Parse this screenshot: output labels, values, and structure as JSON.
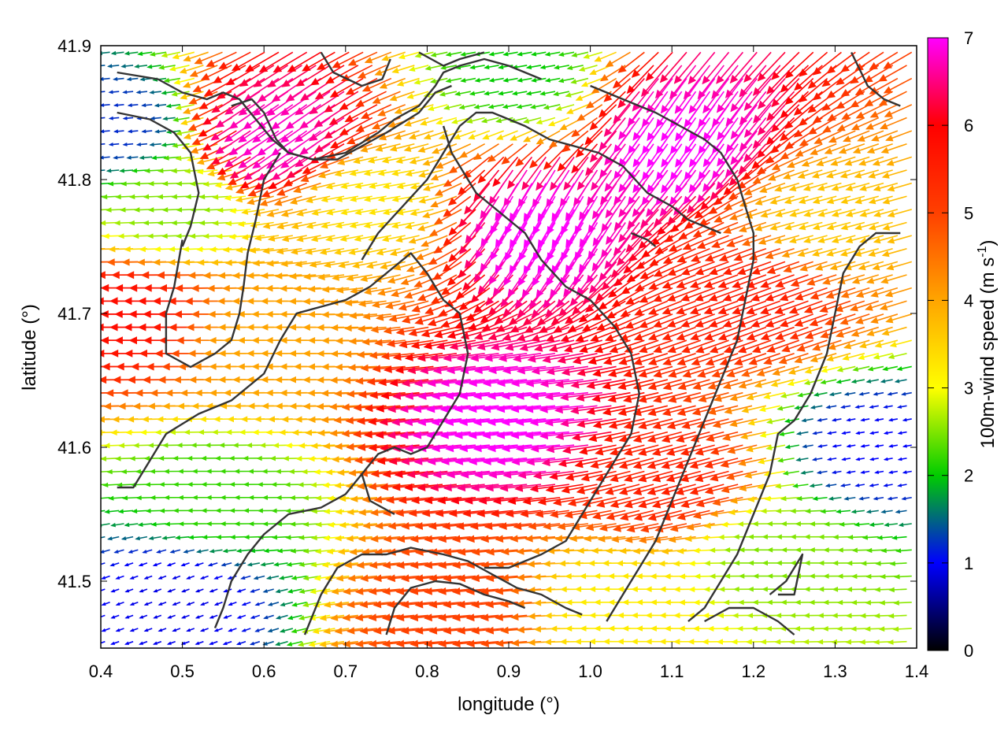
{
  "chart_data": {
    "type": "vector-field",
    "xlabel": "longitude (°)",
    "ylabel": "latitude (°)",
    "colorbar_label": {
      "main": "100m-wind speed (m s",
      "exponent": "-1",
      "close": ")"
    },
    "xlim": [
      0.4,
      1.4
    ],
    "ylim": [
      41.45,
      41.9
    ],
    "xticks": [
      0.4,
      0.5,
      0.6,
      0.7,
      0.8,
      0.9,
      1.0,
      1.1,
      1.2,
      1.3,
      1.4
    ],
    "xtick_labels": [
      "0.4",
      "0.5",
      "0.6",
      "0.7",
      "0.8",
      "0.9",
      "1.0",
      "1.1",
      "1.2",
      "1.3",
      "1.4"
    ],
    "yticks": [
      41.5,
      41.6,
      41.7,
      41.8,
      41.9
    ],
    "ytick_labels": [
      "41.5",
      "41.6",
      "41.7",
      "41.8",
      "41.9"
    ],
    "colorbar": {
      "min": 0,
      "max": 7,
      "ticks": [
        0,
        1,
        2,
        3,
        4,
        5,
        6,
        7
      ],
      "tick_labels": [
        "0",
        "1",
        "2",
        "3",
        "4",
        "5",
        "6",
        "7"
      ],
      "colormap": [
        "#000000",
        "#0000ff",
        "#00cc00",
        "#ffff00",
        "#ffa500",
        "#ff4000",
        "#ff0000",
        "#ff00ff"
      ]
    },
    "wind_regions": [
      {
        "name": "calm-southwest",
        "lon": 0.5,
        "lat": 41.49,
        "speed": 0.9,
        "dir_deg": 200
      },
      {
        "name": "calm-southeast",
        "lon": 1.35,
        "lat": 41.6,
        "speed": 1.0,
        "dir_deg": 190
      },
      {
        "name": "calm-northwest",
        "lon": 0.42,
        "lat": 41.84,
        "speed": 1.2,
        "dir_deg": 185
      },
      {
        "name": "calm-north",
        "lon": 0.92,
        "lat": 41.88,
        "speed": 2.0,
        "dir_deg": 190
      },
      {
        "name": "green-west-low",
        "lon": 0.55,
        "lat": 41.56,
        "speed": 2.2,
        "dir_deg": 180
      },
      {
        "name": "green-southeast",
        "lon": 1.24,
        "lat": 41.52,
        "speed": 2.5,
        "dir_deg": 180
      },
      {
        "name": "green-northwest",
        "lon": 0.5,
        "lat": 41.78,
        "speed": 2.5,
        "dir_deg": 182
      },
      {
        "name": "jet-core",
        "lon": 0.92,
        "lat": 41.62,
        "speed": 7.0,
        "dir_deg": 185
      },
      {
        "name": "jet-north",
        "lon": 0.95,
        "lat": 41.78,
        "speed": 7.0,
        "dir_deg": 240
      },
      {
        "name": "jet-northeast",
        "lon": 1.12,
        "lat": 41.84,
        "speed": 7.0,
        "dir_deg": 235
      },
      {
        "name": "north-pink",
        "lon": 0.64,
        "lat": 41.84,
        "speed": 6.8,
        "dir_deg": 215
      },
      {
        "name": "west-red-band",
        "lon": 0.46,
        "lat": 41.7,
        "speed": 5.8,
        "dir_deg": 180
      },
      {
        "name": "east-red",
        "lon": 1.22,
        "lat": 41.72,
        "speed": 5.6,
        "dir_deg": 200
      },
      {
        "name": "southeast-red",
        "lon": 1.12,
        "lat": 41.58,
        "speed": 5.5,
        "dir_deg": 195
      },
      {
        "name": "south-band",
        "lon": 0.86,
        "lat": 41.48,
        "speed": 5.0,
        "dir_deg": 185
      },
      {
        "name": "west-orange",
        "lon": 0.62,
        "lat": 41.68,
        "speed": 4.0,
        "dir_deg": 180
      },
      {
        "name": "east-orange",
        "lon": 1.3,
        "lat": 41.77,
        "speed": 3.6,
        "dir_deg": 195
      },
      {
        "name": "yellow-south",
        "lon": 1.05,
        "lat": 41.48,
        "speed": 3.2,
        "dir_deg": 180
      },
      {
        "name": "ridge-yellow",
        "lon": 0.75,
        "lat": 41.79,
        "speed": 3.3,
        "dir_deg": 190
      }
    ],
    "contours": [
      [
        [
          0.42,
          41.88
        ],
        [
          0.47,
          41.875
        ],
        [
          0.5,
          41.865
        ],
        [
          0.53,
          41.86
        ],
        [
          0.55,
          41.865
        ],
        [
          0.57,
          41.86
        ],
        [
          0.59,
          41.845
        ],
        [
          0.61,
          41.83
        ],
        [
          0.63,
          41.82
        ],
        [
          0.66,
          41.815
        ],
        [
          0.7,
          41.82
        ],
        [
          0.74,
          41.835
        ],
        [
          0.76,
          41.845
        ],
        [
          0.79,
          41.855
        ],
        [
          0.81,
          41.87
        ],
        [
          0.82,
          41.88
        ],
        [
          0.84,
          41.885
        ],
        [
          0.87,
          41.89
        ],
        [
          0.9,
          41.885
        ],
        [
          0.92,
          41.88
        ],
        [
          0.94,
          41.875
        ]
      ],
      [
        [
          0.56,
          41.855
        ],
        [
          0.585,
          41.86
        ],
        [
          0.6,
          41.85
        ],
        [
          0.615,
          41.83
        ],
        [
          0.63,
          41.82
        ],
        [
          0.66,
          41.815
        ],
        [
          0.69,
          41.815
        ],
        [
          0.72,
          41.825
        ],
        [
          0.75,
          41.835
        ],
        [
          0.79,
          41.85
        ],
        [
          0.81,
          41.865
        ],
        [
          0.83,
          41.87
        ]
      ],
      [
        [
          0.67,
          41.895
        ],
        [
          0.685,
          41.88
        ],
        [
          0.72,
          41.87
        ],
        [
          0.745,
          41.875
        ],
        [
          0.755,
          41.89
        ]
      ],
      [
        [
          0.79,
          41.895
        ],
        [
          0.82,
          41.885
        ],
        [
          0.84,
          41.89
        ],
        [
          0.87,
          41.895
        ]
      ],
      [
        [
          0.5,
          41.755
        ],
        [
          0.49,
          41.72
        ],
        [
          0.48,
          41.7
        ],
        [
          0.48,
          41.67
        ],
        [
          0.51,
          41.66
        ],
        [
          0.54,
          41.67
        ],
        [
          0.56,
          41.68
        ],
        [
          0.57,
          41.7
        ],
        [
          0.575,
          41.72
        ],
        [
          0.58,
          41.745
        ],
        [
          0.59,
          41.77
        ],
        [
          0.6,
          41.8
        ],
        [
          0.62,
          41.82
        ]
      ],
      [
        [
          0.42,
          41.85
        ],
        [
          0.46,
          41.845
        ],
        [
          0.49,
          41.835
        ],
        [
          0.51,
          41.82
        ],
        [
          0.52,
          41.79
        ],
        [
          0.51,
          41.765
        ],
        [
          0.5,
          41.75
        ]
      ],
      [
        [
          0.42,
          41.57
        ],
        [
          0.44,
          41.57
        ],
        [
          0.46,
          41.59
        ],
        [
          0.48,
          41.61
        ],
        [
          0.52,
          41.625
        ],
        [
          0.56,
          41.635
        ],
        [
          0.6,
          41.655
        ],
        [
          0.62,
          41.68
        ],
        [
          0.64,
          41.7
        ],
        [
          0.67,
          41.705
        ],
        [
          0.7,
          41.71
        ],
        [
          0.73,
          41.72
        ],
        [
          0.75,
          41.73
        ],
        [
          0.78,
          41.745
        ],
        [
          0.8,
          41.73
        ],
        [
          0.82,
          41.71
        ],
        [
          0.84,
          41.7
        ],
        [
          0.85,
          41.67
        ],
        [
          0.84,
          41.64
        ],
        [
          0.82,
          41.62
        ],
        [
          0.8,
          41.6
        ],
        [
          0.78,
          41.595
        ],
        [
          0.76,
          41.6
        ],
        [
          0.74,
          41.595
        ],
        [
          0.72,
          41.58
        ],
        [
          0.73,
          41.56
        ],
        [
          0.76,
          41.55
        ]
      ],
      [
        [
          0.72,
          41.58
        ],
        [
          0.7,
          41.565
        ],
        [
          0.67,
          41.555
        ],
        [
          0.63,
          41.55
        ],
        [
          0.6,
          41.535
        ],
        [
          0.58,
          41.52
        ],
        [
          0.56,
          41.5
        ],
        [
          0.55,
          41.48
        ],
        [
          0.54,
          41.465
        ]
      ],
      [
        [
          0.65,
          41.46
        ],
        [
          0.67,
          41.49
        ],
        [
          0.69,
          41.51
        ],
        [
          0.72,
          41.52
        ],
        [
          0.75,
          41.52
        ],
        [
          0.78,
          41.525
        ],
        [
          0.82,
          41.52
        ],
        [
          0.85,
          41.515
        ],
        [
          0.88,
          41.505
        ],
        [
          0.91,
          41.495
        ],
        [
          0.94,
          41.49
        ],
        [
          0.97,
          41.48
        ],
        [
          0.99,
          41.475
        ]
      ],
      [
        [
          0.75,
          41.46
        ],
        [
          0.76,
          41.48
        ],
        [
          0.78,
          41.495
        ],
        [
          0.81,
          41.5
        ],
        [
          0.84,
          41.498
        ],
        [
          0.87,
          41.49
        ],
        [
          0.9,
          41.485
        ],
        [
          0.92,
          41.48
        ]
      ],
      [
        [
          0.72,
          41.74
        ],
        [
          0.74,
          41.76
        ],
        [
          0.77,
          41.78
        ],
        [
          0.8,
          41.8
        ],
        [
          0.82,
          41.82
        ],
        [
          0.84,
          41.84
        ],
        [
          0.86,
          41.85
        ],
        [
          0.88,
          41.85
        ],
        [
          0.9,
          41.845
        ],
        [
          0.92,
          41.84
        ],
        [
          0.95,
          41.83
        ],
        [
          0.98,
          41.825
        ],
        [
          1.01,
          41.82
        ],
        [
          1.04,
          41.81
        ],
        [
          1.07,
          41.79
        ],
        [
          1.1,
          41.78
        ],
        [
          1.12,
          41.77
        ],
        [
          1.14,
          41.765
        ],
        [
          1.16,
          41.76
        ]
      ],
      [
        [
          0.82,
          41.84
        ],
        [
          0.83,
          41.82
        ],
        [
          0.85,
          41.8
        ],
        [
          0.86,
          41.79
        ],
        [
          0.88,
          41.78
        ],
        [
          0.9,
          41.77
        ],
        [
          0.92,
          41.76
        ],
        [
          0.94,
          41.74
        ],
        [
          0.97,
          41.72
        ],
        [
          1.0,
          41.71
        ],
        [
          1.03,
          41.69
        ],
        [
          1.05,
          41.67
        ],
        [
          1.06,
          41.64
        ],
        [
          1.05,
          41.61
        ],
        [
          1.03,
          41.59
        ],
        [
          1.01,
          41.57
        ],
        [
          0.99,
          41.55
        ],
        [
          0.97,
          41.53
        ],
        [
          0.94,
          41.52
        ],
        [
          0.9,
          41.51
        ],
        [
          0.87,
          41.51
        ]
      ],
      [
        [
          1.0,
          41.87
        ],
        [
          1.04,
          41.86
        ],
        [
          1.08,
          41.85
        ],
        [
          1.11,
          41.84
        ],
        [
          1.14,
          41.83
        ],
        [
          1.16,
          41.82
        ],
        [
          1.18,
          41.8
        ],
        [
          1.19,
          41.78
        ],
        [
          1.2,
          41.76
        ],
        [
          1.2,
          41.74
        ],
        [
          1.19,
          41.71
        ],
        [
          1.18,
          41.68
        ],
        [
          1.16,
          41.65
        ],
        [
          1.14,
          41.62
        ],
        [
          1.12,
          41.59
        ],
        [
          1.1,
          41.56
        ],
        [
          1.08,
          41.53
        ],
        [
          1.06,
          41.51
        ],
        [
          1.04,
          41.49
        ],
        [
          1.02,
          41.47
        ]
      ],
      [
        [
          1.38,
          41.76
        ],
        [
          1.35,
          41.76
        ],
        [
          1.33,
          41.75
        ],
        [
          1.31,
          41.73
        ],
        [
          1.3,
          41.7
        ],
        [
          1.29,
          41.67
        ],
        [
          1.27,
          41.64
        ],
        [
          1.25,
          41.62
        ],
        [
          1.23,
          41.61
        ],
        [
          1.22,
          41.58
        ],
        [
          1.2,
          41.55
        ],
        [
          1.18,
          41.52
        ],
        [
          1.16,
          41.5
        ],
        [
          1.14,
          41.48
        ],
        [
          1.12,
          41.47
        ]
      ],
      [
        [
          1.22,
          41.49
        ],
        [
          1.24,
          41.5
        ],
        [
          1.26,
          41.52
        ],
        [
          1.25,
          41.49
        ],
        [
          1.23,
          41.49
        ]
      ],
      [
        [
          1.14,
          41.47
        ],
        [
          1.17,
          41.48
        ],
        [
          1.2,
          41.48
        ],
        [
          1.23,
          41.47
        ],
        [
          1.25,
          41.46
        ]
      ],
      [
        [
          1.32,
          41.895
        ],
        [
          1.34,
          41.87
        ],
        [
          1.36,
          41.86
        ],
        [
          1.38,
          41.855
        ]
      ],
      [
        [
          1.05,
          41.76
        ],
        [
          1.07,
          41.755
        ],
        [
          1.08,
          41.75
        ]
      ]
    ]
  }
}
